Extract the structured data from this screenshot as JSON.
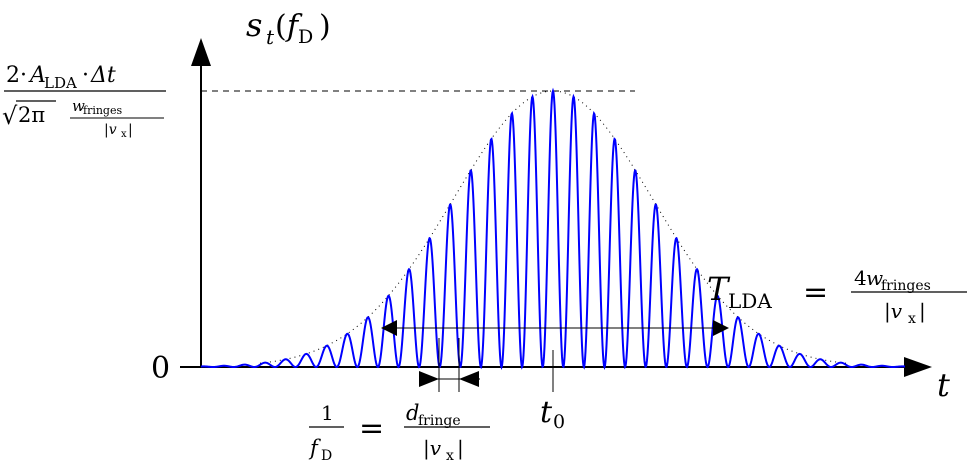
{
  "diagram": {
    "y_axis_label": {
      "main": "s",
      "sub": "t",
      "arg_open": "(",
      "arg": "f",
      "arg_sub": "D",
      "arg_close": ")"
    },
    "x_axis_label": "t",
    "zero_label": "0",
    "t0_label": {
      "main": "t",
      "sub": "0"
    },
    "peak_label": {
      "numerator": {
        "two": "2",
        "dot1": "·",
        "A": "A",
        "A_sub": "LDA",
        "dot2": "·",
        "delta_t": "Δt"
      },
      "denominator": {
        "sqrt": "√",
        "two_pi": "2π",
        "w": "w",
        "w_sub": "fringes",
        "v": "|v",
        "v_sub": "x",
        "v_close": "|"
      }
    },
    "period_label": {
      "lhs_num": "1",
      "lhs_den": "f",
      "lhs_den_sub": "D",
      "equals": "=",
      "rhs_num": "d",
      "rhs_num_sub": "fringe",
      "rhs_den": "|v",
      "rhs_den_sub": "x",
      "rhs_den_close": "|"
    },
    "duration_label": {
      "T": "T",
      "T_sub": "LDA",
      "equals": "=",
      "num_coeff": "4",
      "num_w": "w",
      "num_w_sub": "fringes",
      "den": "|v",
      "den_sub": "x",
      "den_close": "|"
    },
    "colors": {
      "signal": "#0000ff",
      "envelope": "#000000",
      "axes": "#000000"
    },
    "signal": {
      "fringe_count": 32,
      "shape": "gaussian-envelope × cos² fringes"
    }
  }
}
